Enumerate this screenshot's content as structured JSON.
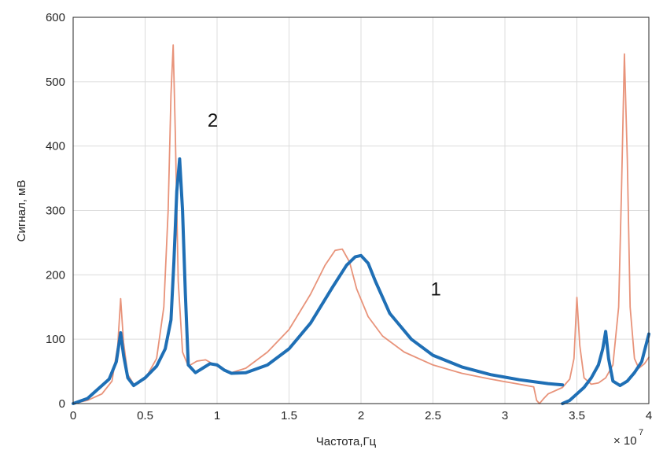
{
  "chart_data": {
    "type": "line",
    "xlabel": "Частота,Гц",
    "ylabel": "Сигнал, мВ",
    "x_exponent_label": "× 10",
    "x_exponent_power": "7",
    "xlim": [
      0,
      4
    ],
    "ylim": [
      0,
      600
    ],
    "grid": true,
    "x_ticks": [
      "0",
      "0.5",
      "1",
      "1.5",
      "2",
      "2.5",
      "3",
      "3.5",
      "4"
    ],
    "y_ticks": [
      "0",
      "100",
      "200",
      "300",
      "400",
      "500",
      "600"
    ],
    "annotations": [
      {
        "text": "2",
        "x": 0.97,
        "y": 430
      },
      {
        "text": "1",
        "x": 2.52,
        "y": 168
      }
    ],
    "series": [
      {
        "color": "#e8937a",
        "style": "thin-line",
        "x": [
          0,
          0.1,
          0.2,
          0.27,
          0.31,
          0.33,
          0.35,
          0.38,
          0.42,
          0.5,
          0.58,
          0.63,
          0.66,
          0.68,
          0.695,
          0.71,
          0.73,
          0.76,
          0.8,
          0.86,
          0.92,
          1.0,
          1.1,
          1.2,
          1.35,
          1.5,
          1.65,
          1.75,
          1.82,
          1.87,
          1.92,
          1.97,
          2.05,
          2.15,
          2.3,
          2.5,
          2.7,
          2.9,
          3.1,
          3.2,
          3.22,
          3.24,
          3.27,
          3.3,
          3.4,
          3.45,
          3.48,
          3.5,
          3.52,
          3.55,
          3.6,
          3.65,
          3.7,
          3.75,
          3.79,
          3.81,
          3.83,
          3.85,
          3.87,
          3.9,
          3.93,
          3.97,
          4.0
        ],
        "y": [
          0,
          5,
          15,
          35,
          90,
          163,
          95,
          45,
          30,
          38,
          70,
          150,
          300,
          480,
          557,
          420,
          190,
          80,
          58,
          66,
          68,
          58,
          48,
          55,
          80,
          115,
          170,
          215,
          238,
          240,
          220,
          178,
          135,
          105,
          80,
          60,
          47,
          38,
          30,
          26,
          5,
          0,
          8,
          15,
          25,
          38,
          70,
          165,
          90,
          40,
          30,
          32,
          40,
          60,
          150,
          330,
          543,
          380,
          150,
          70,
          55,
          62,
          72
        ]
      },
      {
        "color": "#1f6fb5",
        "style": "thick-line",
        "x": [
          0,
          0.1,
          0.17,
          0.2,
          0.25,
          0.3,
          0.33,
          0.35,
          0.38,
          0.42,
          0.5,
          0.58,
          0.64,
          0.68,
          0.7,
          0.72,
          0.74,
          0.76,
          0.78,
          0.8,
          0.85,
          0.9,
          0.95,
          1.0,
          1.05,
          1.1,
          1.2,
          1.35,
          1.5,
          1.65,
          1.8,
          1.9,
          1.96,
          2.0,
          2.05,
          2.1,
          2.2,
          2.35,
          2.5,
          2.7,
          2.9,
          3.1,
          3.3,
          3.4
        ],
        "y": [
          0,
          8,
          22,
          28,
          38,
          65,
          110,
          75,
          40,
          28,
          40,
          58,
          85,
          130,
          220,
          330,
          380,
          300,
          170,
          60,
          48,
          55,
          62,
          60,
          52,
          47,
          48,
          60,
          85,
          125,
          180,
          215,
          228,
          230,
          218,
          190,
          140,
          100,
          75,
          57,
          45,
          37,
          31,
          29
        ]
      },
      {
        "color": "#1f6fb5",
        "style": "thick-line",
        "x": [
          3.4,
          3.45,
          3.5,
          3.55,
          3.6,
          3.65,
          3.68,
          3.7,
          3.72,
          3.75,
          3.8,
          3.85,
          3.9,
          3.95,
          4.0
        ],
        "y": [
          0,
          5,
          15,
          25,
          40,
          60,
          85,
          112,
          70,
          35,
          28,
          35,
          48,
          65,
          108
        ]
      }
    ]
  }
}
